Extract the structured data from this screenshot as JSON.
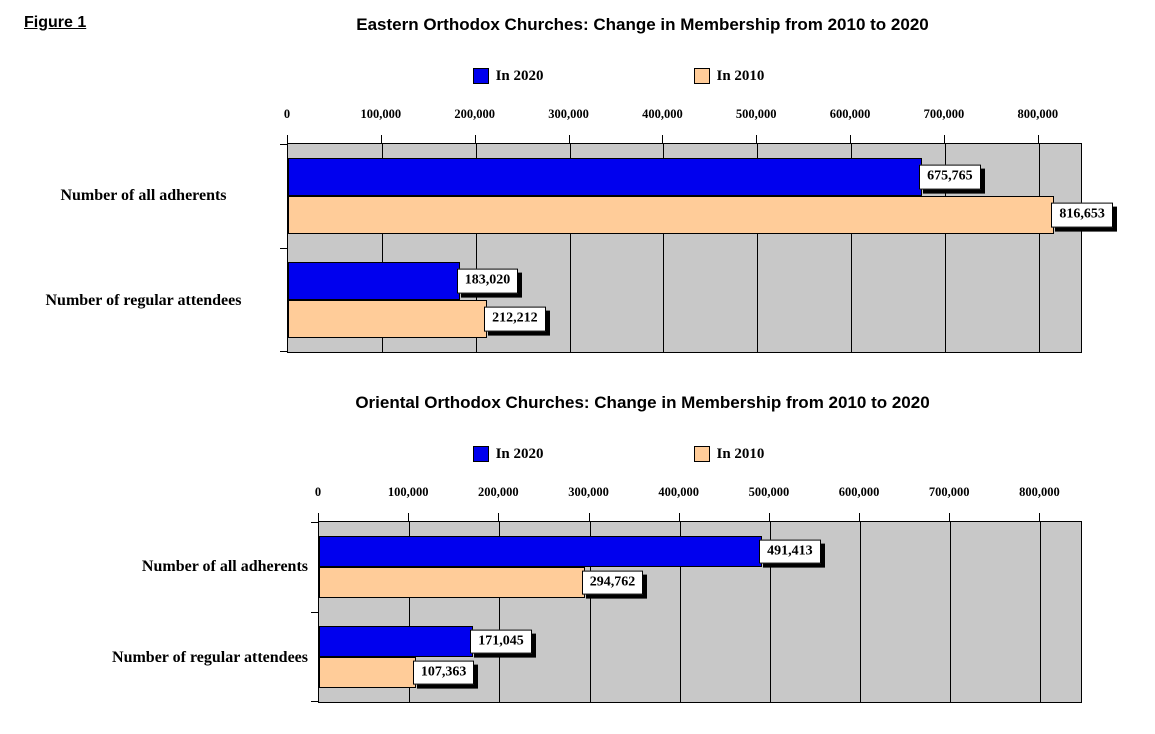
{
  "figure_label": "Figure 1",
  "chart_data": [
    {
      "type": "bar",
      "orientation": "horizontal",
      "title": "Eastern Orthodox Churches: Change in Membership from 2010 to 2020",
      "categories": [
        "Number of all adherents",
        "Number of regular attendees"
      ],
      "series": [
        {
          "name": "In 2020",
          "color": "#0000EE",
          "values": [
            675765,
            183020
          ],
          "value_labels": [
            "675,765",
            "183,020"
          ]
        },
        {
          "name": "In 2010",
          "color": "#FFCC99",
          "values": [
            816653,
            212212
          ],
          "value_labels": [
            "816,653",
            "212,212"
          ]
        }
      ],
      "x_axis": {
        "tick_values": [
          0,
          100000,
          200000,
          300000,
          400000,
          500000,
          600000,
          700000,
          800000
        ],
        "tick_labels": [
          "0",
          "100,000",
          "200,000",
          "300,000",
          "400,000",
          "500,000",
          "600,000",
          "700,000",
          "800,000"
        ],
        "max": 845000
      },
      "legend_position": "top",
      "grid": true,
      "plot_background": "#C8C8C8",
      "gridline_color": "#000000"
    },
    {
      "type": "bar",
      "orientation": "horizontal",
      "title": "Oriental Orthodox Churches: Change in Membership from 2010 to 2020",
      "categories": [
        "Number of all adherents",
        "Number of regular attendees"
      ],
      "series": [
        {
          "name": "In 2020",
          "color": "#0000EE",
          "values": [
            491413,
            171045
          ],
          "value_labels": [
            "491,413",
            "171,045"
          ]
        },
        {
          "name": "In 2010",
          "color": "#FFCC99",
          "values": [
            294762,
            107363
          ],
          "value_labels": [
            "294,762",
            "107,363"
          ]
        }
      ],
      "x_axis": {
        "tick_values": [
          0,
          100000,
          200000,
          300000,
          400000,
          500000,
          600000,
          700000,
          800000
        ],
        "tick_labels": [
          "0",
          "100,000",
          "200,000",
          "300,000",
          "400,000",
          "500,000",
          "600,000",
          "700,000",
          "800,000"
        ],
        "max": 845000
      },
      "legend_position": "top",
      "grid": true,
      "plot_background": "#C8C8C8",
      "gridline_color": "#000000"
    }
  ]
}
